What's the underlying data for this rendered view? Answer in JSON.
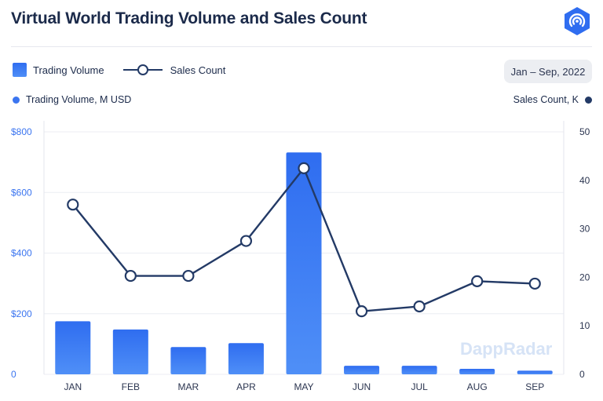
{
  "header": {
    "title": "Virtual World Trading Volume and Sales Count"
  },
  "legend": {
    "bar_label": "Trading Volume",
    "line_label": "Sales Count"
  },
  "date_range": "Jan – Sep, 2022",
  "axis_captions": {
    "left": "Trading Volume, M USD",
    "right": "Sales Count, K"
  },
  "watermark": "DappRadar",
  "chart_data": {
    "type": "bar+line",
    "categories": [
      "JAN",
      "FEB",
      "MAR",
      "APR",
      "MAY",
      "JUN",
      "JUL",
      "AUG",
      "SEP"
    ],
    "series": [
      {
        "name": "Trading Volume",
        "axis": "left",
        "type": "bar",
        "values": [
          175,
          148,
          90,
          103,
          732,
          28,
          28,
          18,
          12
        ]
      },
      {
        "name": "Sales Count",
        "axis": "right",
        "type": "line",
        "values": [
          35,
          20.3,
          20.3,
          27.5,
          42.5,
          13,
          14,
          19.2,
          18.7
        ]
      }
    ],
    "y_left": {
      "range": [
        0,
        800
      ],
      "ticks": [
        0,
        200,
        400,
        600,
        800
      ],
      "tick_labels": [
        "0",
        "$200",
        "$400",
        "$600",
        "$800"
      ]
    },
    "y_right": {
      "range": [
        0,
        50
      ],
      "ticks": [
        0,
        10,
        20,
        30,
        40,
        50
      ],
      "tick_labels": [
        "0",
        "10",
        "20",
        "30",
        "40",
        "50"
      ]
    },
    "grid": "horizontal",
    "colors": {
      "bar_top": "#2f6df0",
      "bar_bottom": "#4f8ff7",
      "line": "#233a66",
      "marker_fill": "#ffffff",
      "left_axis": "#3b75f0"
    }
  }
}
